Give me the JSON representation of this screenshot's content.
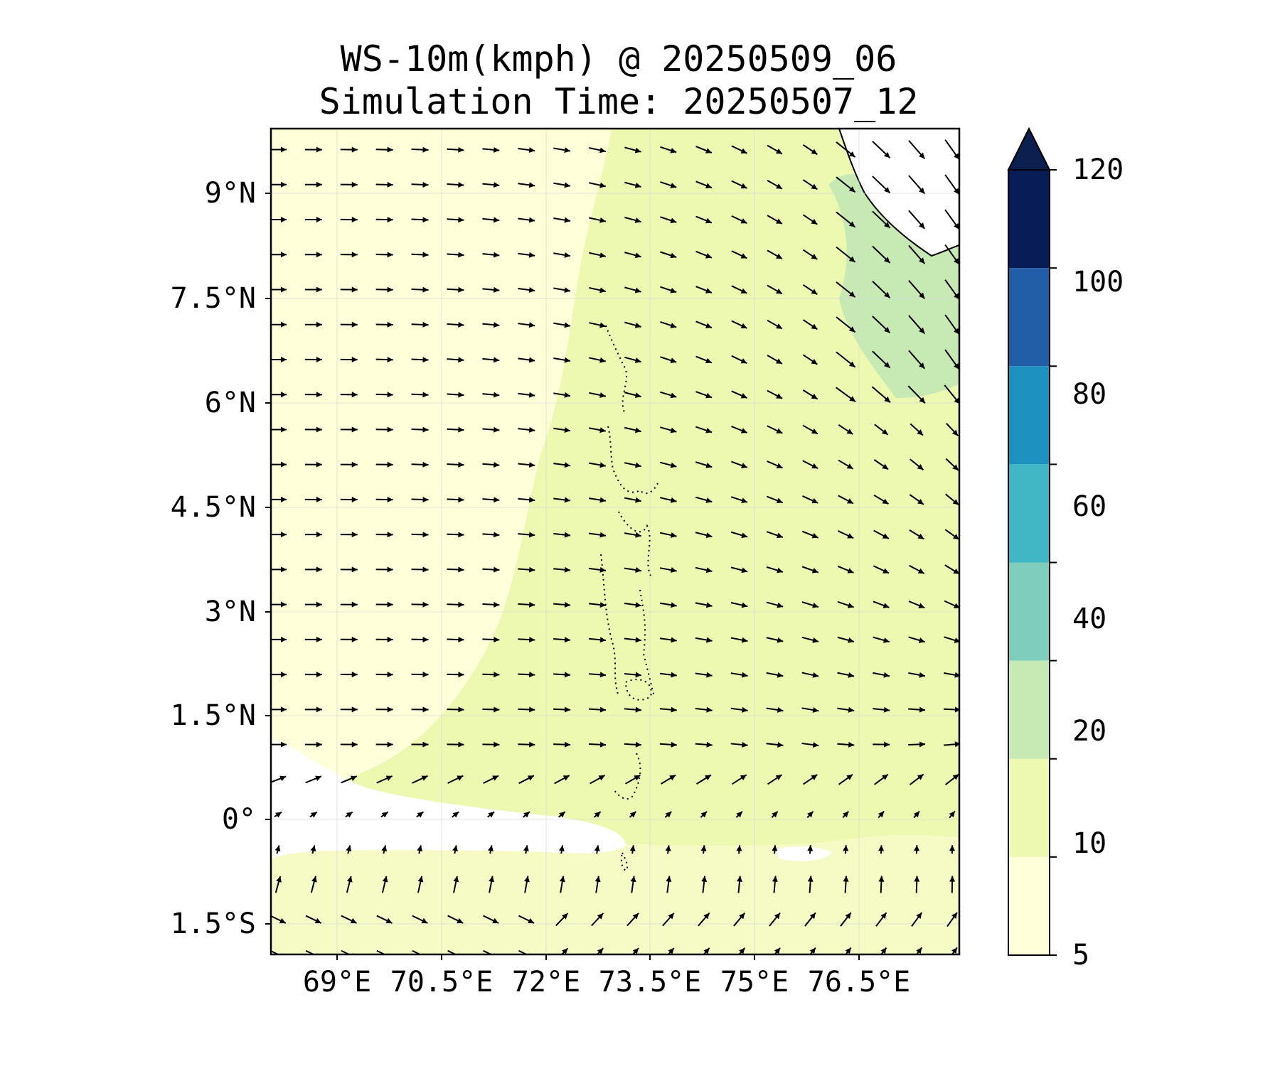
{
  "title": "WS-10m(kmph) @ 20250509_06",
  "subtitle": "Simulation Time: 20250507_12",
  "chart_data": {
    "type": "heatmap",
    "variable": "10 m wind speed with wind direction vectors",
    "projection": "PlateCarree",
    "lon_range": [
      67.9,
      77.6
    ],
    "lat_range": [
      -1.9,
      9.9
    ],
    "x_ticks": [
      {
        "value": 69,
        "label": "69°E"
      },
      {
        "value": 70.5,
        "label": "70.5°E"
      },
      {
        "value": 72,
        "label": "72°E"
      },
      {
        "value": 73.5,
        "label": "73.5°E"
      },
      {
        "value": 75,
        "label": "75°E"
      },
      {
        "value": 76.5,
        "label": "76.5°E"
      }
    ],
    "y_ticks": [
      {
        "value": 9,
        "label": "9°N"
      },
      {
        "value": 7.5,
        "label": "7.5°N"
      },
      {
        "value": 6,
        "label": "6°N"
      },
      {
        "value": 4.5,
        "label": "4.5°N"
      },
      {
        "value": 3,
        "label": "3°N"
      },
      {
        "value": 1.5,
        "label": "1.5°N"
      },
      {
        "value": 0,
        "label": "0°"
      },
      {
        "value": -1.5,
        "label": "1.5°S"
      }
    ],
    "grid": true,
    "colorbar": {
      "levels": [
        5,
        10,
        20,
        40,
        60,
        80,
        100,
        120
      ],
      "labels": [
        "5",
        "10",
        "20",
        "40",
        "60",
        "80",
        "100",
        "120"
      ],
      "colors": [
        "#ffffd9",
        "#edf8b1",
        "#c7e9b4",
        "#7fcdbb",
        "#41b6c4",
        "#1d91c0",
        "#225ea8",
        "#081d58"
      ],
      "extend": "max",
      "over_color": "#0c2050",
      "position": "right"
    },
    "field_colors": {
      "below_min": "#ffffff",
      "range_5_10": "#ffffd9",
      "range_10_20": "#edf8b1",
      "range_20_40": "#c7e9b4"
    },
    "vectors": {
      "color": "#000000",
      "lon_start": 68.0,
      "lon_step": 0.5,
      "lon_count": 20,
      "lat_start": -1.9,
      "lat_step": 0.5,
      "lat_count": 24
    }
  }
}
